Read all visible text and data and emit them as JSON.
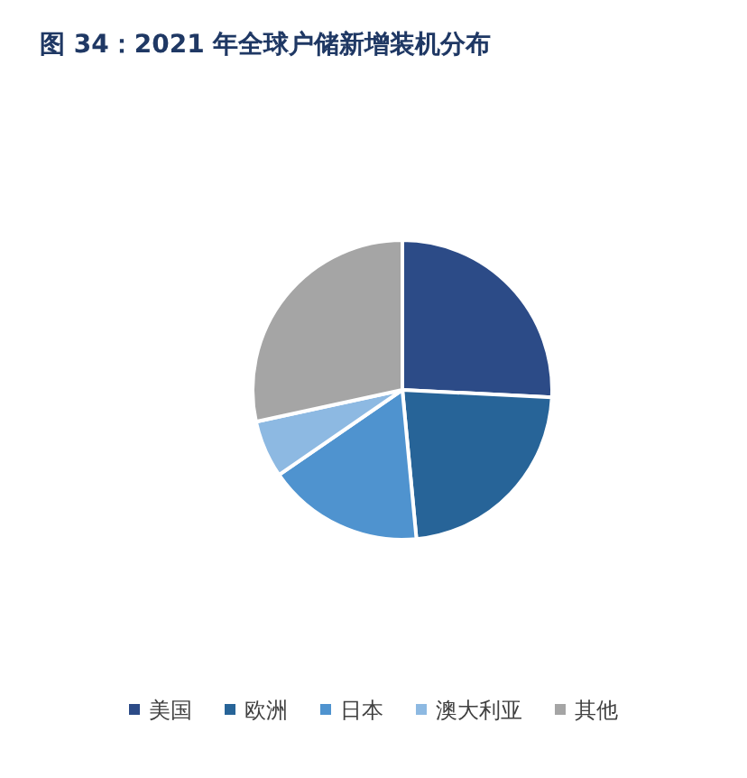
{
  "chart_data": {
    "type": "pie",
    "title": "图 34：2021 年全球户储新增装机分布",
    "categories": [
      "美国",
      "欧洲",
      "日本",
      "澳大利亚",
      "其他"
    ],
    "values": [
      25.8,
      22.7,
      16.9,
      6.2,
      28.4
    ],
    "colors": [
      "#2c4b87",
      "#276498",
      "#4f93cf",
      "#8db9e2",
      "#a5a5a5"
    ],
    "legend": "bottom"
  }
}
